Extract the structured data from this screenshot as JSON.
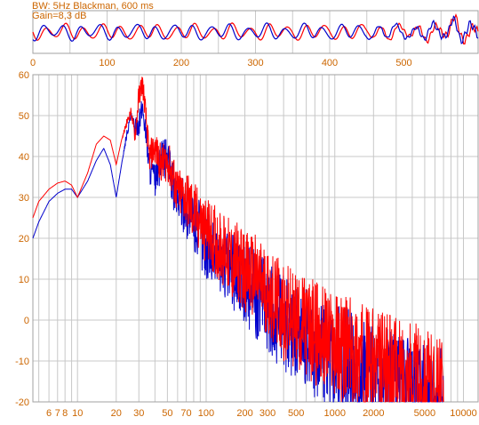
{
  "header": {
    "line1": "BW: 5Hz Blackman, 600 ms",
    "line2": "Gain=8,3 dB"
  },
  "colors": {
    "label": "#cc6600",
    "series_red": "#ff0000",
    "series_blue": "#0000cc",
    "grid": "#c8c8c8",
    "frame": "#a0a0a0"
  },
  "chart_data": [
    {
      "type": "line",
      "panel": "waveform",
      "xlim": [
        0,
        600
      ],
      "xticks": [
        0,
        100,
        200,
        300,
        400,
        500
      ],
      "grid": true,
      "series": [
        {
          "color": "red",
          "signal": "waveform-a"
        },
        {
          "color": "blue",
          "signal": "waveform-b"
        }
      ]
    },
    {
      "type": "line",
      "panel": "spectrum",
      "xscale": "log",
      "xlim": [
        4.5,
        13000
      ],
      "ylim": [
        -20,
        60
      ],
      "yticks": [
        60,
        50,
        40,
        30,
        20,
        10,
        0,
        -10,
        -20
      ],
      "xtick_labels": [
        {
          "v": 6,
          "t": "6"
        },
        {
          "v": 7,
          "t": "7"
        },
        {
          "v": 8,
          "t": "8"
        },
        {
          "v": 10,
          "t": "10"
        },
        {
          "v": 20,
          "t": "20"
        },
        {
          "v": 30,
          "t": "30"
        },
        {
          "v": 50,
          "t": "50"
        },
        {
          "v": 70,
          "t": "70"
        },
        {
          "v": 100,
          "t": "100"
        },
        {
          "v": 200,
          "t": "200"
        },
        {
          "v": 300,
          "t": "300"
        },
        {
          "v": 500,
          "t": "500"
        },
        {
          "v": 1000,
          "t": "1000"
        },
        {
          "v": 2000,
          "t": "2000"
        },
        {
          "v": 5000,
          "t": "5000"
        },
        {
          "v": 10000,
          "t": "10000"
        }
      ],
      "grid": true,
      "series": [
        {
          "color": "red",
          "x": [
            4.5,
            5,
            6,
            7,
            8,
            9,
            10,
            12,
            14,
            16,
            18,
            20,
            22,
            24,
            26,
            28,
            30,
            32,
            34,
            36,
            40,
            45,
            50,
            55,
            60,
            70,
            80,
            90,
            100,
            120,
            140,
            160,
            180,
            200,
            250,
            300,
            400,
            500,
            700,
            1000,
            1500,
            2000,
            3000,
            4000,
            5000,
            6000,
            7000
          ],
          "y": [
            25,
            29,
            32,
            33.5,
            34,
            33,
            30,
            36,
            43,
            45,
            44,
            38,
            44,
            48,
            51,
            45,
            55,
            58,
            50,
            40,
            42,
            38,
            39,
            35,
            31,
            30,
            26,
            24,
            22,
            19,
            17,
            14,
            14,
            12,
            10,
            7,
            2,
            0,
            -3,
            -6,
            -9,
            -11,
            -13,
            -14,
            -16,
            -17,
            -19
          ],
          "spread": [
            0,
            0,
            0,
            0,
            0,
            0,
            0,
            0,
            0,
            0,
            0,
            0,
            0,
            1,
            1,
            2,
            3,
            3,
            3,
            4,
            4,
            5,
            5,
            6,
            6,
            7,
            8,
            8,
            8,
            9,
            9,
            10,
            10,
            10,
            11,
            11,
            12,
            12,
            13,
            13,
            14,
            14,
            14,
            14,
            14,
            14,
            14
          ]
        },
        {
          "color": "blue",
          "x": [
            4.5,
            5,
            6,
            7,
            8,
            9,
            10,
            12,
            14,
            16,
            18,
            20,
            22,
            24,
            26,
            28,
            30,
            32,
            34,
            36,
            40,
            45,
            50,
            55,
            60,
            70,
            80,
            90,
            100,
            120,
            140,
            160,
            180,
            200,
            250,
            300,
            400,
            500,
            700,
            1000,
            1500,
            2000,
            3000,
            4000,
            5000,
            6000,
            7000
          ],
          "y": [
            20,
            24,
            29,
            31,
            32,
            32,
            30,
            34,
            39,
            42,
            38,
            30,
            38,
            45,
            50,
            47,
            48,
            52,
            46,
            38,
            34,
            39,
            40,
            33,
            30,
            27,
            24,
            21,
            18,
            16,
            14,
            12,
            11,
            9,
            6,
            3,
            -1,
            -3,
            -6,
            -9,
            -12,
            -14,
            -16,
            -18,
            -19,
            -20,
            -20
          ],
          "spread": [
            0,
            0,
            0,
            0,
            0,
            0,
            0,
            0,
            0,
            0,
            0,
            0,
            0,
            1,
            1,
            2,
            3,
            3,
            3,
            4,
            4,
            5,
            5,
            6,
            6,
            7,
            8,
            8,
            8,
            9,
            9,
            10,
            10,
            10,
            11,
            11,
            12,
            12,
            13,
            13,
            14,
            14,
            14,
            14,
            14,
            14,
            14
          ]
        }
      ]
    }
  ]
}
